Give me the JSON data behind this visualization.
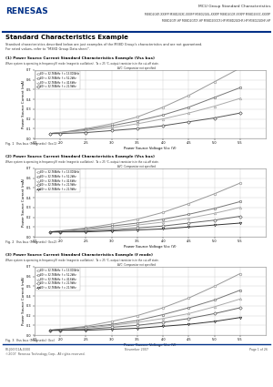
{
  "header_title": "MCU Group Standard Characteristics",
  "header_part1": "M38D2GXF-XXXFP M38D2GXC-XXXFP M38D2GXL-XXXFP M38D2GOF-XXXFP M38D2GOC-XXXFP",
  "header_part2": "M38D2GTF-HP M38D2GTCF-HP M38D2GOCF-HP M38D2GOHF-HP M38D2GOHF-HP",
  "section_title": "Standard Characteristics Example",
  "section_desc1": "Standard characteristics described below are just examples of the M38D Group's characteristics and are not guaranteed.",
  "section_desc2": "For rated values, refer to \"M38D Group Data sheet\".",
  "charts": [
    {
      "title": "(1) Power Source Current Standard Characteristics Example (Vss bus)",
      "cond": "When system is operating in frequency(f) mode (magnetic oscillation).  Ta = 25 °C, output transistor is in the cut-off state.",
      "subcond": "AVC: Comparator not specified",
      "xlabel": "Power Source Voltage Vcc (V)",
      "ylabel": "Power Source Current (mA)",
      "caption": "Fig. 1  Vss bus (Magnetic) (Icc1)",
      "xlim": [
        1.5,
        6.0
      ],
      "ylim": [
        0.0,
        0.7
      ],
      "xticks": [
        1.5,
        2.0,
        2.5,
        3.0,
        3.5,
        4.0,
        4.5,
        5.0,
        5.5
      ],
      "yticks": [
        0.0,
        0.1,
        0.2,
        0.3,
        0.4,
        0.5,
        0.6,
        0.7
      ],
      "series": [
        {
          "label": "f(0) = 32.768kHz  f = 13.000kHz",
          "marker": "o",
          "color": "#999999",
          "data": [
            0.05,
            0.06,
            0.1,
            0.15,
            0.22,
            0.32,
            0.44,
            0.58,
            0.72
          ]
        },
        {
          "label": "f(0) = 32.768kHz  f = 51.2kHz",
          "marker": "s",
          "color": "#777777",
          "data": [
            0.05,
            0.06,
            0.09,
            0.13,
            0.18,
            0.24,
            0.32,
            0.42,
            0.52
          ]
        },
        {
          "label": "f(0) = 32.768kHz  f = 41.6kHz",
          "marker": "^",
          "color": "#aaaaaa",
          "data": [
            0.05,
            0.06,
            0.08,
            0.11,
            0.15,
            0.2,
            0.26,
            0.33,
            0.41
          ]
        },
        {
          "label": "f(0) = 32.768kHz  f = 21.9kHz",
          "marker": "D",
          "color": "#555555",
          "data": [
            0.05,
            0.05,
            0.06,
            0.08,
            0.1,
            0.13,
            0.17,
            0.21,
            0.26
          ]
        }
      ]
    },
    {
      "title": "(2) Power Source Current Standard Characteristics Example (Vss bus)",
      "cond": "When system is operating in frequency(f) mode (magnetic oscillation).  Ta = 25 °C, output transistor is in the cut-off state.",
      "subcond": "AVC: Comparator not specified",
      "xlabel": "Power Source Voltage Vcc (V)",
      "ylabel": "Power Source Current (mA)",
      "caption": "Fig. 2  Vss bus (Magnetic) (Icc2)",
      "xlim": [
        1.5,
        6.0
      ],
      "ylim": [
        0.0,
        0.7
      ],
      "xticks": [
        1.5,
        2.0,
        2.5,
        3.0,
        3.5,
        4.0,
        4.5,
        5.0,
        5.5
      ],
      "yticks": [
        0.0,
        0.1,
        0.2,
        0.3,
        0.4,
        0.5,
        0.6,
        0.7
      ],
      "series": [
        {
          "label": "f(0) = 32.768kHz  f = 13.000kHz",
          "marker": "o",
          "color": "#999999",
          "data": [
            0.05,
            0.06,
            0.09,
            0.13,
            0.18,
            0.25,
            0.34,
            0.44,
            0.55
          ]
        },
        {
          "label": "f(0) = 32.768kHz  f = 51.2kHz",
          "marker": "s",
          "color": "#777777",
          "data": [
            0.05,
            0.06,
            0.08,
            0.11,
            0.14,
            0.18,
            0.23,
            0.29,
            0.36
          ]
        },
        {
          "label": "f(0) = 32.768kHz  f = 41.6kHz",
          "marker": "^",
          "color": "#aaaaaa",
          "data": [
            0.05,
            0.05,
            0.07,
            0.09,
            0.12,
            0.15,
            0.19,
            0.24,
            0.3
          ]
        },
        {
          "label": "f(0) = 32.768kHz  f = 21.9kHz",
          "marker": "D",
          "color": "#666666",
          "data": [
            0.05,
            0.05,
            0.06,
            0.07,
            0.09,
            0.11,
            0.14,
            0.17,
            0.21
          ]
        },
        {
          "label": "f(0) = 32.768kHz  f = 21.9kHz",
          "marker": "v",
          "color": "#333333",
          "data": [
            0.05,
            0.05,
            0.05,
            0.06,
            0.07,
            0.08,
            0.1,
            0.12,
            0.14
          ]
        }
      ]
    },
    {
      "title": "(3) Power Source Current Standard Characteristics Example (f mode)",
      "cond": "When system is operating in frequency(f) mode (magnetic oscillation).  Ta = 25 °C, output transistor is in the cut-off state.",
      "subcond": "AVC: Comparator not specified",
      "xlabel": "Power Source Voltage Vcc (V)",
      "ylabel": "Power Source Current (mA)",
      "caption": "Fig. 3  Vss bus (Magnetic) (Icc)",
      "xlim": [
        1.5,
        6.0
      ],
      "ylim": [
        0.0,
        0.7
      ],
      "xticks": [
        1.5,
        2.0,
        2.5,
        3.0,
        3.5,
        4.0,
        4.5,
        5.0,
        5.5
      ],
      "yticks": [
        0.0,
        0.1,
        0.2,
        0.3,
        0.4,
        0.5,
        0.6,
        0.7
      ],
      "series": [
        {
          "label": "f(0) = 32.768kHz  f = 13.000kHz",
          "marker": "o",
          "color": "#999999",
          "data": [
            0.05,
            0.06,
            0.09,
            0.14,
            0.2,
            0.28,
            0.38,
            0.5,
            0.63
          ]
        },
        {
          "label": "f(0) = 32.768kHz  f = 51.2kHz",
          "marker": "s",
          "color": "#777777",
          "data": [
            0.05,
            0.06,
            0.08,
            0.11,
            0.15,
            0.21,
            0.28,
            0.36,
            0.46
          ]
        },
        {
          "label": "f(0) = 32.768kHz  f = 41.6kHz",
          "marker": "^",
          "color": "#aaaaaa",
          "data": [
            0.05,
            0.05,
            0.07,
            0.1,
            0.13,
            0.17,
            0.22,
            0.29,
            0.37
          ]
        },
        {
          "label": "f(0) = 32.768kHz  f = 21.9kHz",
          "marker": "D",
          "color": "#666666",
          "data": [
            0.05,
            0.05,
            0.06,
            0.08,
            0.1,
            0.13,
            0.17,
            0.22,
            0.28
          ]
        },
        {
          "label": "f(0) = 32.768kHz  f = 21.9kHz",
          "marker": "v",
          "color": "#333333",
          "data": [
            0.05,
            0.05,
            0.05,
            0.06,
            0.07,
            0.09,
            0.11,
            0.14,
            0.18
          ]
        }
      ]
    }
  ],
  "xdata": [
    1.8,
    2.0,
    2.5,
    3.0,
    3.5,
    4.0,
    4.5,
    5.0,
    5.5
  ],
  "footer_left": "RE.J06Y11A-0300\n©2007  Renesas Technology Corp., All rights reserved.",
  "footer_center": "November 2007",
  "footer_right": "Page 1 of 26",
  "bg_color": "#ffffff",
  "renesas_blue": "#003087"
}
